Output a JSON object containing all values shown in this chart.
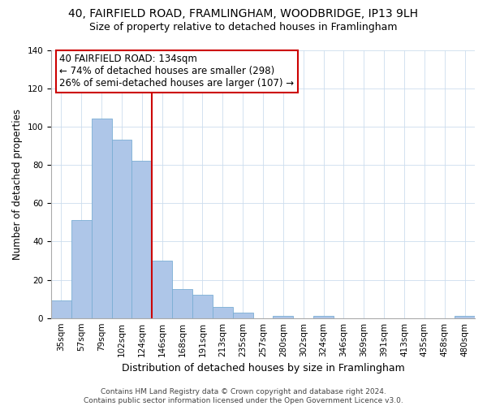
{
  "title1": "40, FAIRFIELD ROAD, FRAMLINGHAM, WOODBRIDGE, IP13 9LH",
  "title2": "Size of property relative to detached houses in Framlingham",
  "xlabel": "Distribution of detached houses by size in Framlingham",
  "ylabel": "Number of detached properties",
  "categories": [
    "35sqm",
    "57sqm",
    "79sqm",
    "102sqm",
    "124sqm",
    "146sqm",
    "168sqm",
    "191sqm",
    "213sqm",
    "235sqm",
    "257sqm",
    "280sqm",
    "302sqm",
    "324sqm",
    "346sqm",
    "369sqm",
    "391sqm",
    "413sqm",
    "435sqm",
    "458sqm",
    "480sqm"
  ],
  "values": [
    9,
    51,
    104,
    93,
    82,
    30,
    15,
    12,
    6,
    3,
    0,
    1,
    0,
    1,
    0,
    0,
    0,
    0,
    0,
    0,
    1
  ],
  "bar_color": "#aec6e8",
  "bar_edge_color": "#7aaed4",
  "vline_x": 4.5,
  "vline_color": "#cc0000",
  "annotation_line1": "40 FAIRFIELD ROAD: 134sqm",
  "annotation_line2": "← 74% of detached houses are smaller (298)",
  "annotation_line3": "26% of semi-detached houses are larger (107) →",
  "annotation_box_color": "#ffffff",
  "annotation_box_edge": "#cc0000",
  "ylim": [
    0,
    140
  ],
  "yticks": [
    0,
    20,
    40,
    60,
    80,
    100,
    120,
    140
  ],
  "footer": "Contains HM Land Registry data © Crown copyright and database right 2024.\nContains public sector information licensed under the Open Government Licence v3.0.",
  "title1_fontsize": 10,
  "title2_fontsize": 9,
  "xlabel_fontsize": 9,
  "ylabel_fontsize": 8.5,
  "tick_fontsize": 7.5,
  "annotation_fontsize": 8.5,
  "footer_fontsize": 6.5
}
